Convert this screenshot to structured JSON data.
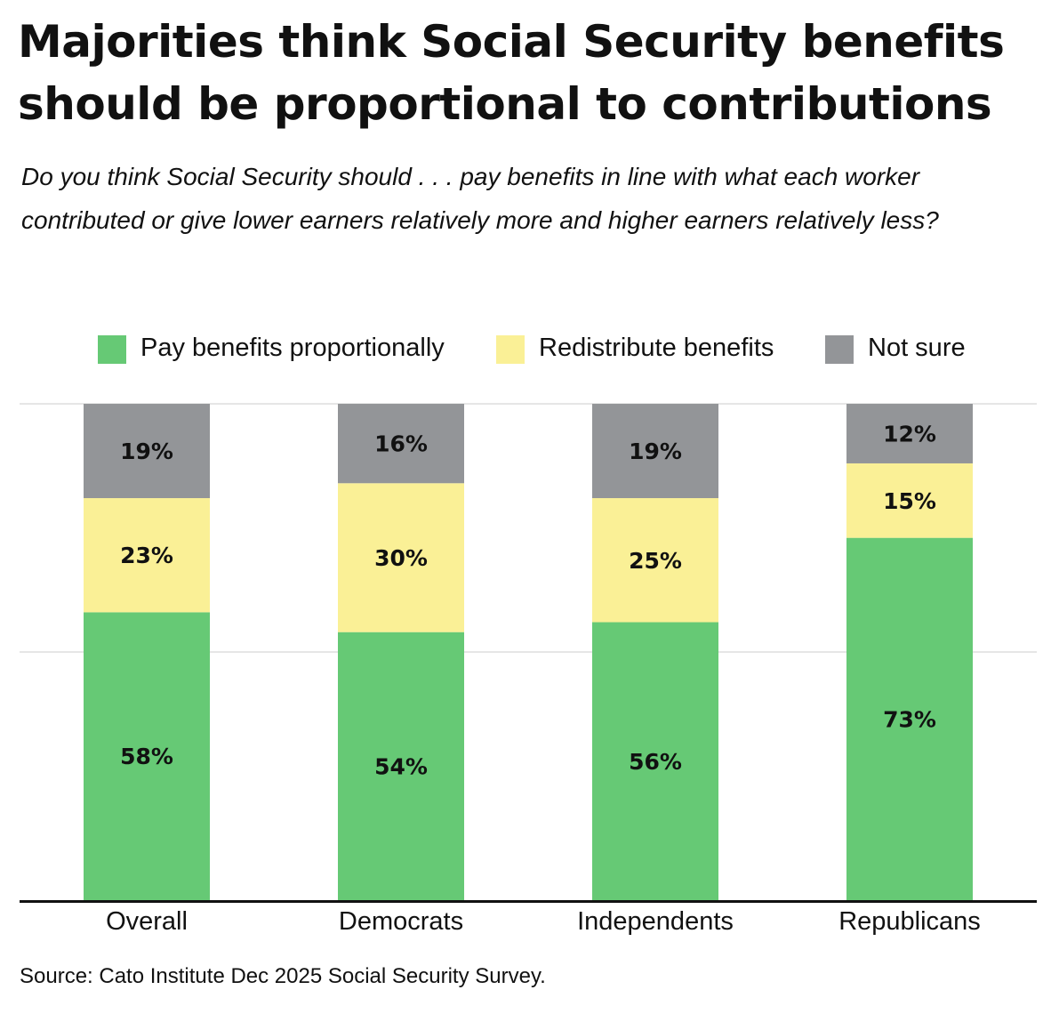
{
  "chart_data": {
    "type": "bar",
    "stacked": true,
    "title": "Majorities think Social Security benefits should be proportional to contributions",
    "subtitle": "Do you think Social Security should . . . pay benefits in line with what each worker contributed or give lower earners relatively more and higher earners relatively less?",
    "categories": [
      "Overall",
      "Democrats",
      "Independents",
      "Republicans"
    ],
    "series": [
      {
        "name": "Pay benefits proportionally",
        "color": "#66c975",
        "values": [
          58,
          54,
          56,
          73
        ]
      },
      {
        "name": "Redistribute benefits",
        "color": "#faf096",
        "values": [
          23,
          30,
          25,
          15
        ]
      },
      {
        "name": "Not sure",
        "color": "#939598",
        "values": [
          19,
          16,
          19,
          12
        ]
      }
    ],
    "value_format": "%",
    "ylim": [
      0,
      100
    ],
    "grid": true,
    "legend_placement": "top",
    "source": "Source: Cato Institute Dec 2025 Social Security Survey."
  }
}
